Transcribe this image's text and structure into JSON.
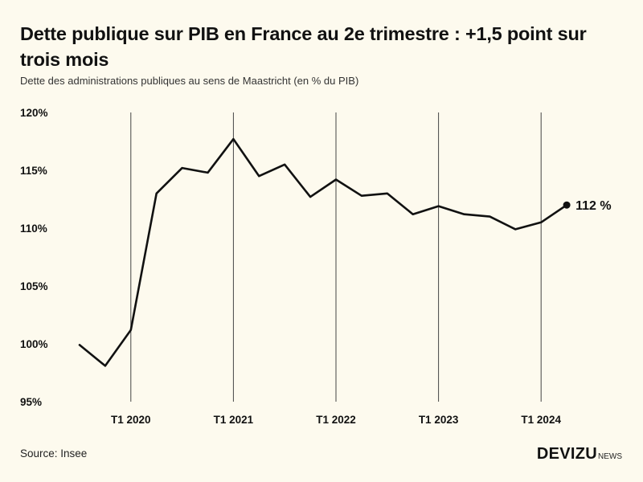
{
  "header": {
    "title": "Dette publique sur PIB en France au 2e trimestre : +1,5 point sur trois mois",
    "subtitle": "Dette des administrations publiques au sens de Maastricht (en % du PIB)"
  },
  "footer": {
    "source": "Source: Insee",
    "logo_main": "DEVIZU",
    "logo_sub": "NEWS"
  },
  "colors": {
    "background": "#fdfaee",
    "line": "#111111",
    "gridline": "#444444"
  },
  "chart_data": {
    "type": "line",
    "title": "Dette publique sur PIB en France au 2e trimestre : +1,5 point sur trois mois",
    "subtitle": "Dette des administrations publiques au sens de Maastricht (en % du PIB)",
    "xlabel": "",
    "ylabel": "",
    "ylim": [
      95,
      120
    ],
    "y_ticks": [
      120,
      115,
      110,
      105,
      100,
      95
    ],
    "y_tick_labels": [
      "120%",
      "115%",
      "110%",
      "105%",
      "100%",
      "95%"
    ],
    "x_ticks": [
      {
        "label": "T1 2020",
        "x": "2020-T1"
      },
      {
        "label": "T1 2021",
        "x": "2021-T1"
      },
      {
        "label": "T1 2022",
        "x": "2022-T1"
      },
      {
        "label": "T1 2023",
        "x": "2023-T1"
      },
      {
        "label": "T1 2024",
        "x": "2024-T1"
      }
    ],
    "grid": "vertical lines at x ticks",
    "series": [
      {
        "name": "",
        "x": [
          "2019-T3",
          "2019-T4",
          "2020-T1",
          "2020-T2",
          "2020-T3",
          "2020-T4",
          "2021-T1",
          "2021-T2",
          "2021-T3",
          "2021-T4",
          "2022-T1",
          "2022-T2",
          "2022-T3",
          "2022-T4",
          "2023-T1",
          "2023-T2",
          "2023-T3",
          "2023-T4",
          "2024-T1",
          "2024-T2"
        ],
        "values": [
          99.9,
          98.1,
          101.2,
          113.0,
          115.2,
          114.8,
          117.7,
          114.5,
          115.5,
          112.7,
          114.2,
          112.8,
          113.0,
          111.2,
          111.9,
          111.2,
          111.0,
          109.9,
          110.5,
          112.0
        ]
      }
    ],
    "end_label": "112 %"
  }
}
